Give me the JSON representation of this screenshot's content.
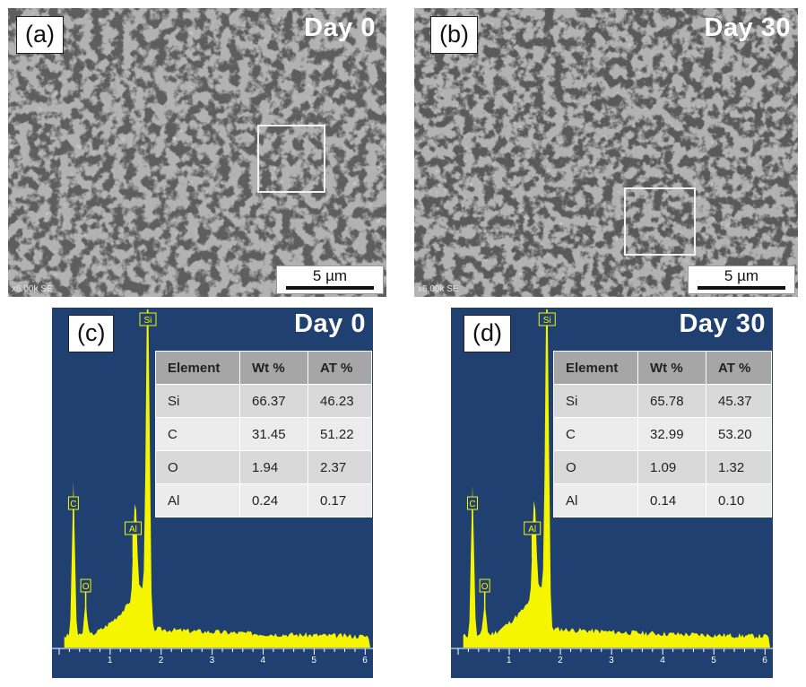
{
  "panels": {
    "a": {
      "label": "(a)",
      "day": "Day 0",
      "scale": "5 µm",
      "info": "x6.00k SE"
    },
    "b": {
      "label": "(b)",
      "day": "Day 30",
      "scale": "5 µm",
      "info": "x6.00k SE"
    },
    "c": {
      "label": "(c)",
      "day": "Day 0",
      "table": {
        "headers": [
          "Element",
          "Wt %",
          "AT %"
        ],
        "rows": [
          [
            "Si",
            "66.37",
            "46.23"
          ],
          [
            "C",
            "31.45",
            "51.22"
          ],
          [
            "O",
            "1.94",
            "2.37"
          ],
          [
            "Al",
            "0.24",
            "0.17"
          ]
        ]
      },
      "peaks": [
        "C",
        "O",
        "Al",
        "Si"
      ]
    },
    "d": {
      "label": "(d)",
      "day": "Day 30",
      "table": {
        "headers": [
          "Element",
          "Wt %",
          "AT %"
        ],
        "rows": [
          [
            "Si",
            "65.78",
            "45.37"
          ],
          [
            "C",
            "32.99",
            "53.20"
          ],
          [
            "O",
            "1.09",
            "1.32"
          ],
          [
            "Al",
            "0.14",
            "0.10"
          ]
        ]
      },
      "peaks": [
        "C",
        "O",
        "Al",
        "Si"
      ]
    }
  },
  "eds_axis_ticks": [
    "1",
    "2",
    "3",
    "4",
    "5",
    "6"
  ],
  "colors": {
    "eds_background": "#1f4070",
    "spectrum": "#f5f500",
    "sem_base": "#6f6f6f"
  }
}
